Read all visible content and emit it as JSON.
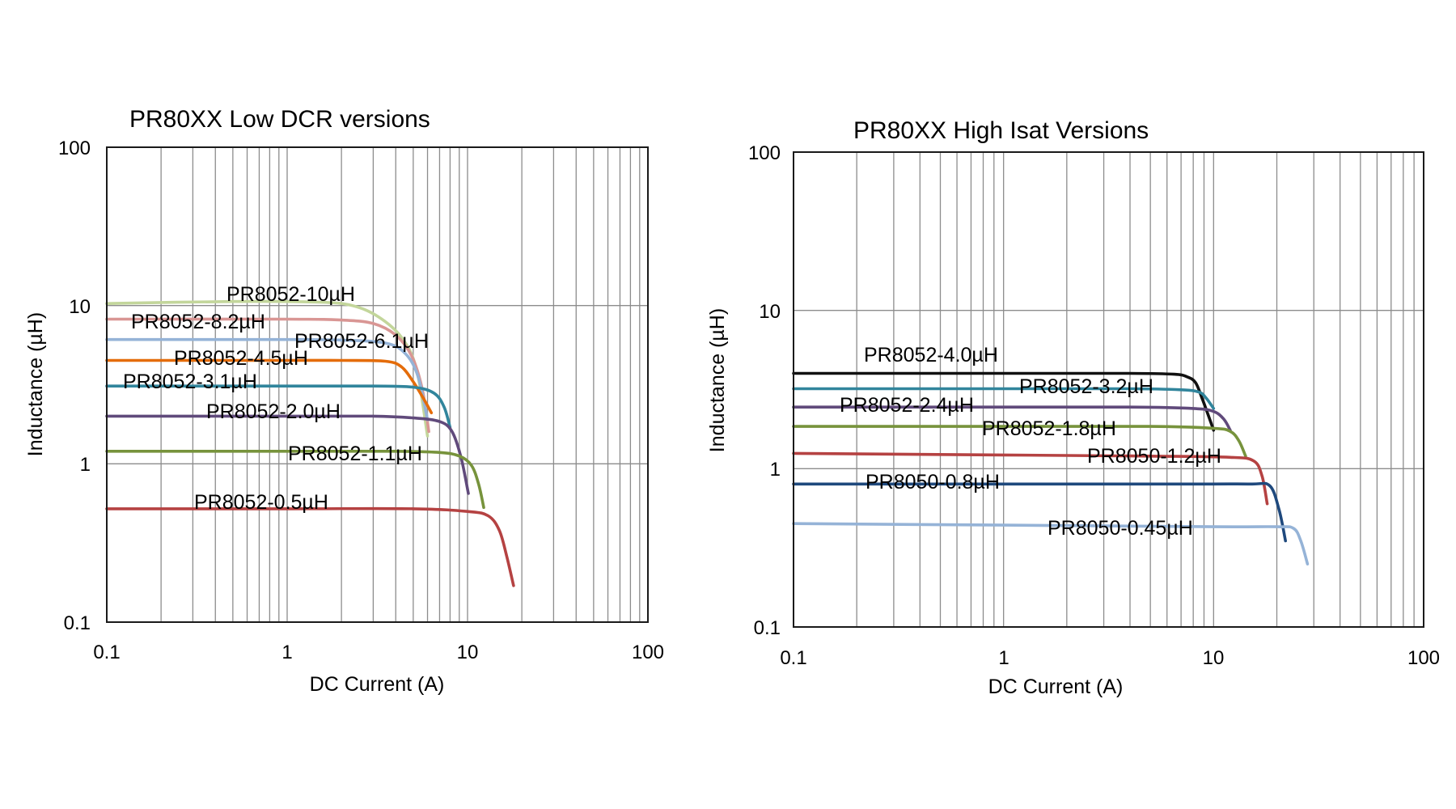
{
  "chart_data": [
    {
      "type": "line",
      "title": "PR80XX Low DCR versions",
      "xlabel": "DC Current (A)",
      "ylabel": "Inductance (µH)",
      "xscale": "log",
      "yscale": "log",
      "xlim": [
        0.1,
        100
      ],
      "ylim": [
        0.1,
        100
      ],
      "xticks": [
        "0.1",
        "1",
        "10",
        "100"
      ],
      "yticks": [
        "0.1",
        "1",
        "10",
        "100"
      ],
      "grid": true,
      "series": [
        {
          "name": "PR8052-10µH",
          "color": "#c3d69b",
          "x": [
            0.1,
            0.5,
            1.5,
            2.3,
            3.2,
            4.3,
            5.2,
            6.0
          ],
          "y": [
            10.3,
            10.6,
            10.5,
            10.0,
            8.5,
            6.3,
            4.0,
            1.5
          ]
        },
        {
          "name": "PR8052-8.2µH",
          "color": "#d99694",
          "x": [
            0.1,
            1.0,
            2.0,
            3.0,
            4.0,
            4.9,
            5.6,
            6.1
          ],
          "y": [
            8.2,
            8.2,
            8.1,
            7.7,
            6.5,
            4.8,
            3.0,
            1.6
          ]
        },
        {
          "name": "PR8052-6.1µH",
          "color": "#95b3d7",
          "x": [
            0.1,
            1.0,
            2.0,
            3.5,
            4.5,
            5.3,
            6.0
          ],
          "y": [
            6.1,
            6.1,
            6.05,
            5.8,
            5.0,
            3.6,
            1.9
          ]
        },
        {
          "name": "PR8052-4.5µH",
          "color": "#e46c0a",
          "x": [
            0.1,
            1.0,
            2.0,
            3.5,
            4.3,
            5.0,
            5.8,
            6.3
          ],
          "y": [
            4.5,
            4.5,
            4.5,
            4.45,
            4.1,
            3.3,
            2.5,
            2.1
          ]
        },
        {
          "name": "PR8052-3.1µH",
          "color": "#31859c",
          "x": [
            0.1,
            1.0,
            3.0,
            5.0,
            6.5,
            7.4,
            8.0
          ],
          "y": [
            3.1,
            3.1,
            3.1,
            3.05,
            2.8,
            2.3,
            1.7
          ]
        },
        {
          "name": "PR8052-2.0µH",
          "color": "#604a7b",
          "x": [
            0.1,
            1.0,
            3.0,
            5.0,
            7.0,
            8.2,
            9.2,
            10.1
          ],
          "y": [
            2.0,
            2.0,
            2.0,
            1.95,
            1.85,
            1.6,
            1.1,
            0.65
          ]
        },
        {
          "name": "PR8052-1.1µH",
          "color": "#77933c",
          "x": [
            0.1,
            1.0,
            4.0,
            7.0,
            9.0,
            10.5,
            11.5,
            12.3
          ],
          "y": [
            1.2,
            1.2,
            1.2,
            1.18,
            1.12,
            0.98,
            0.75,
            0.53
          ]
        },
        {
          "name": "PR8052-0.5µH",
          "color": "#b54242",
          "x": [
            0.1,
            1.0,
            5.0,
            10.0,
            13.0,
            15.0,
            16.5,
            18.0
          ],
          "y": [
            0.52,
            0.52,
            0.52,
            0.5,
            0.47,
            0.38,
            0.26,
            0.17
          ]
        }
      ]
    },
    {
      "type": "line",
      "title": "PR80XX High Isat Versions",
      "xlabel": "DC Current (A)",
      "ylabel": "Inductance (µH)",
      "xscale": "log",
      "yscale": "log",
      "xlim": [
        0.1,
        100
      ],
      "ylim": [
        0.1,
        100
      ],
      "xticks": [
        "0.1",
        "1",
        "10",
        "100"
      ],
      "yticks": [
        "0.1",
        "1",
        "10",
        "100"
      ],
      "grid": true,
      "series": [
        {
          "name": "PR8052-4.0µH",
          "color": "#111111",
          "x": [
            0.1,
            1.0,
            4.0,
            6.5,
            7.5,
            8.2,
            8.8,
            9.4,
            10.0
          ],
          "y": [
            4.0,
            4.0,
            4.0,
            3.95,
            3.8,
            3.5,
            2.8,
            2.2,
            1.75
          ]
        },
        {
          "name": "PR8052-3.2µH",
          "color": "#31859c",
          "x": [
            0.1,
            1.0,
            4.0,
            7.0,
            8.5,
            9.2,
            10.0
          ],
          "y": [
            3.2,
            3.2,
            3.2,
            3.15,
            3.05,
            2.8,
            2.4
          ]
        },
        {
          "name": "PR8052-2.4µH",
          "color": "#604a7b",
          "x": [
            0.1,
            1.0,
            4.0,
            8.0,
            10.0,
            11.2,
            12.0
          ],
          "y": [
            2.45,
            2.45,
            2.45,
            2.4,
            2.3,
            2.05,
            1.75
          ]
        },
        {
          "name": "PR8052-1.8µH",
          "color": "#77933c",
          "x": [
            0.1,
            1.0,
            5.0,
            10.0,
            12.0,
            13.2,
            14.2
          ],
          "y": [
            1.85,
            1.85,
            1.85,
            1.8,
            1.72,
            1.5,
            1.2
          ]
        },
        {
          "name": "PR8050-1.2µH",
          "color": "#b54242",
          "x": [
            0.1,
            1.0,
            5.0,
            12.0,
            15.5,
            17.0,
            18.0
          ],
          "y": [
            1.25,
            1.22,
            1.2,
            1.18,
            1.12,
            0.9,
            0.6
          ]
        },
        {
          "name": "PR8050-0.8µH",
          "color": "#1f497d",
          "x": [
            0.1,
            1.0,
            8.0,
            15.0,
            18.5,
            20.5,
            22.0
          ],
          "y": [
            0.8,
            0.8,
            0.8,
            0.8,
            0.78,
            0.55,
            0.35
          ]
        },
        {
          "name": "PR8050-0.45µH",
          "color": "#95b3d7",
          "x": [
            0.1,
            1.0,
            10.0,
            20.0,
            24.0,
            26.0,
            28.0
          ],
          "y": [
            0.45,
            0.44,
            0.43,
            0.43,
            0.42,
            0.35,
            0.25
          ]
        }
      ]
    }
  ]
}
